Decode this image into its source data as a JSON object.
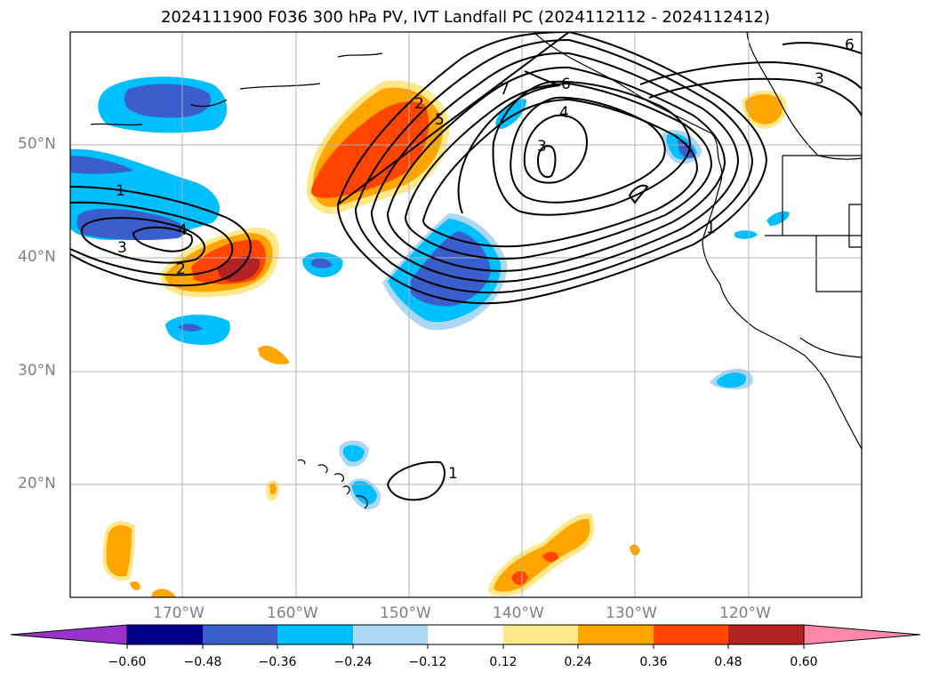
{
  "title": "2024111900 F036 300 hPa PV, IVT Landfall PC (2024112112 - 2024112412)",
  "map": {
    "lat_labels": [
      "50°N",
      "40°N",
      "30°N",
      "20°N"
    ],
    "lon_labels": [
      "170°W",
      "160°W",
      "150°W",
      "140°W",
      "130°W",
      "120°W"
    ],
    "contour_labels": [
      "1",
      "3",
      "2",
      "2",
      "5",
      "7",
      "6",
      "4",
      "3",
      "6",
      "3",
      "1",
      "1",
      "4"
    ]
  },
  "colorbar": {
    "ticks": [
      "−0.60",
      "−0.48",
      "−0.36",
      "−0.24",
      "−0.12",
      "0.12",
      "0.24",
      "0.36",
      "0.48",
      "0.60"
    ],
    "colors": [
      "#9933cc",
      "#00008b",
      "#3a5fcd",
      "#00bfff",
      "#add8f5",
      "#ffffff",
      "#ffe88a",
      "#ffa500",
      "#ff4500",
      "#b22222",
      "#ff88aa"
    ]
  }
}
